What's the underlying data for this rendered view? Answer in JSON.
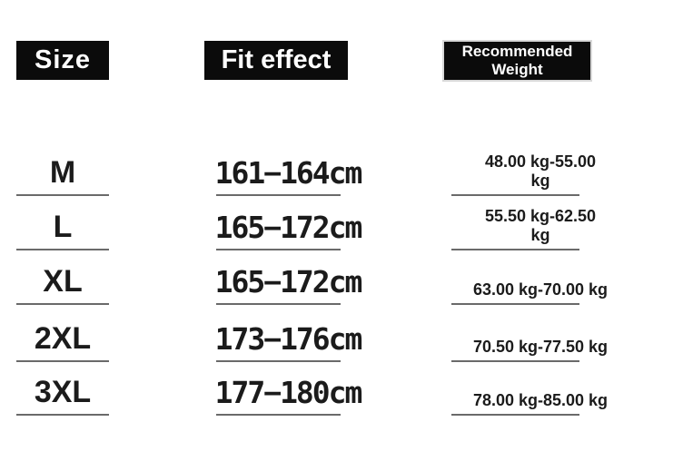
{
  "colors": {
    "background": "#ffffff",
    "header_bg": "#0b0b0b",
    "header_text": "#ffffff",
    "body_text": "#1b1b1b",
    "underline": "#6a6a6a"
  },
  "headers": {
    "size": "Size",
    "fit": "Fit effect",
    "weight": "Recommended Weight"
  },
  "table": {
    "rows": [
      {
        "size": "M",
        "fit": "161−164cm",
        "weight": "48.00 kg-55.00\nkg"
      },
      {
        "size": "L",
        "fit": "165−172cm",
        "weight": "55.50 kg-62.50\nkg"
      },
      {
        "size": "XL",
        "fit": "165−172cm",
        "weight": "63.00 kg-70.00 kg"
      },
      {
        "size": "2XL",
        "fit": "173−176cm",
        "weight": "70.50 kg-77.50 kg"
      },
      {
        "size": "3XL",
        "fit": "177−180cm",
        "weight": "78.00 kg-85.00 kg"
      }
    ]
  },
  "chart_data": {
    "type": "table",
    "title": "Garment size chart",
    "columns": [
      "Size",
      "Fit effect",
      "Recommended Weight"
    ],
    "rows": [
      [
        "M",
        "161-164cm",
        "48.00 kg-55.00 kg"
      ],
      [
        "L",
        "165-172cm",
        "55.50 kg-62.50 kg"
      ],
      [
        "XL",
        "165-172cm",
        "63.00 kg-70.00 kg"
      ],
      [
        "2XL",
        "173-176cm",
        "70.50 kg-77.50 kg"
      ],
      [
        "3XL",
        "177-180cm",
        "78.00 kg-85.00 kg"
      ]
    ]
  }
}
